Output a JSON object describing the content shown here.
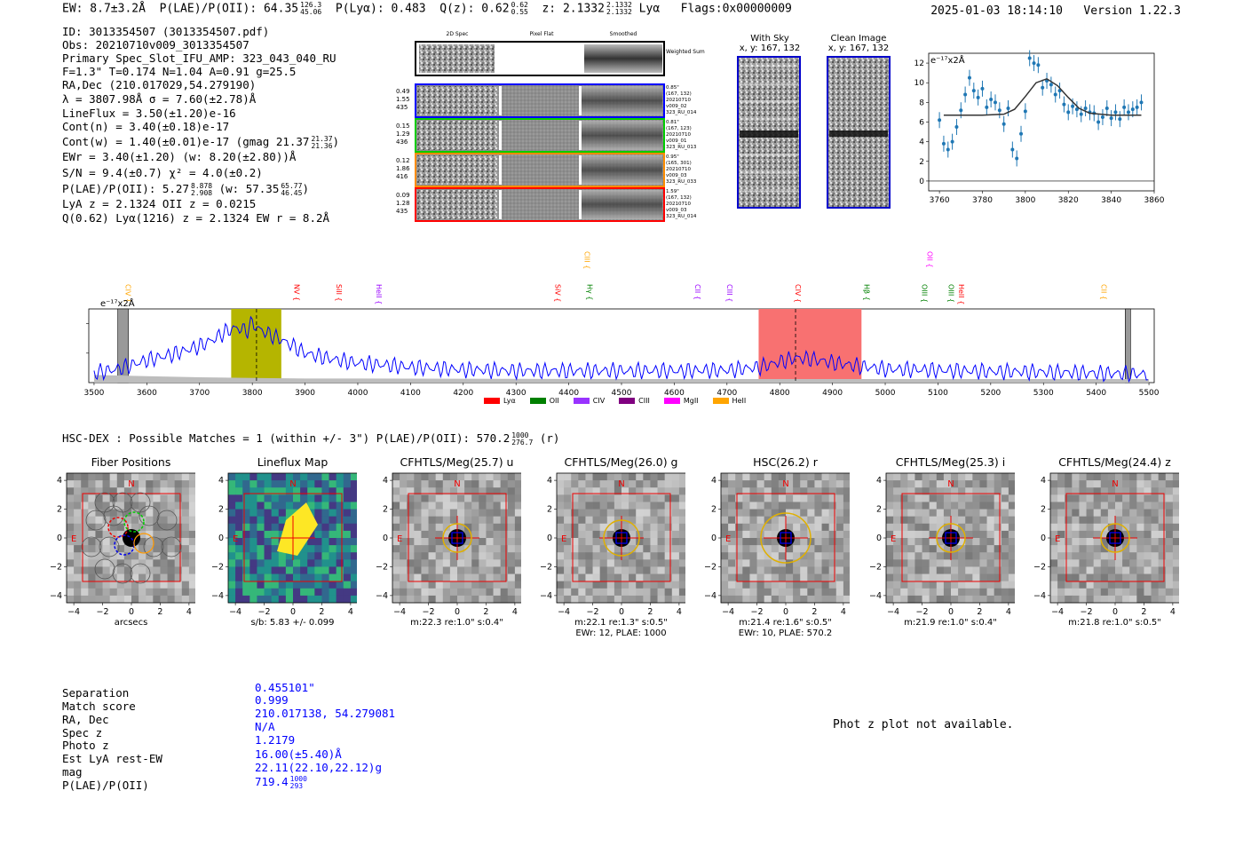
{
  "header": {
    "ew": "EW: 8.7±3.2Å",
    "plae_label": "P(LAE)/P(OII): 64.35",
    "plae_hi": "126.3",
    "plae_lo": "45.06",
    "plya": "P(Lyα): 0.483",
    "qz": "Q(z): 0.62",
    "qz_hi": "0.62",
    "qz_lo": "0.55",
    "z": "z: 2.1332",
    "z_hi": "2.1332",
    "z_lo": "2.1332",
    "z_line": "Lyα",
    "flags": "Flags:0x00000009",
    "datetime": "2025-01-03 18:14:10",
    "version": "Version 1.22.3"
  },
  "info": {
    "id": "ID: 3013354507 (3013354507.pdf)",
    "obs": "Obs: 20210710v009_3013354507",
    "slot": "Primary Spec_Slot_IFU_AMP: 323_043_040_RU",
    "fparams": "F=1.3\"  T=0.174  N=1.04  A=0.91  g=25.5",
    "radec": "RA,Dec (210.017029,54.279190)",
    "lambda": "λ = 3807.98Å  σ = 7.60(±2.78)Å",
    "lineflux": "LineFlux = 3.50(±1.20)e-16",
    "contn": "Cont(n) = 3.40(±0.18)e-17",
    "contw": "Cont(w) = 1.40(±0.01)e-17 (gmag 21.37",
    "contw_hi": "21.37",
    "contw_lo": "21.36",
    "ewr": "EWr = 3.40(±1.20) (w: 8.20(±2.80))Å",
    "sn": "S/N = 9.4(±0.7)  χ² = 4.0(±0.2)",
    "plae": "P(LAE)/P(OII): 5.27",
    "plae_hi": "8.878",
    "plae_lo": "2.908",
    "plae_w": "(w: 57.35",
    "plae_w_hi": "65.77",
    "plae_w_lo": "46.45",
    "lya": "LyA z = 2.1324  OII z = 0.0215",
    "q": "Q(0.62) Lyα(1216) z = 2.1324  EW r = 8.2Å"
  },
  "spec2d": {
    "col_labels": [
      "2D Spec",
      "Pixel Flat",
      "Smoothed"
    ],
    "weighted_label": "Weighted Sum",
    "rows": [
      {
        "left": [
          "0.49",
          "1.55",
          "435"
        ],
        "right": [
          "0.85\"",
          "(167, 132)",
          "20210710",
          "v009_02",
          "323_RU_014"
        ],
        "color": "#0000ff"
      },
      {
        "left": [
          "0.15",
          "1.29",
          "436"
        ],
        "right": [
          "0.81\"",
          "(167, 123)",
          "20210710",
          "v009_01",
          "323_RU_013"
        ],
        "color": "#00cc00"
      },
      {
        "left": [
          "0.12",
          "1.86",
          "416"
        ],
        "right": [
          "0.95\"",
          "(165, 301)",
          "20210710",
          "v009_03",
          "323_RU_033"
        ],
        "color": "#ff8c00"
      },
      {
        "left": [
          "0.09",
          "1.28",
          "435"
        ],
        "right": [
          "1.59\"",
          "(167, 132)",
          "20210710",
          "v009_03",
          "323_RU_014"
        ],
        "color": "#ff0000"
      }
    ]
  },
  "cutouts": {
    "sky_title": "With Sky",
    "sky_coord": "x, y: 167, 132",
    "clean_title": "Clean Image",
    "clean_coord": "x, y: 167, 132"
  },
  "zoom_chart": {
    "ylabel": "e⁻¹⁷x2Å"
  },
  "full_spectrum": {
    "ylabel": "e⁻¹⁷x2Å",
    "line_labels": [
      {
        "name": "CIV",
        "wave": 3560,
        "color": "#ffa500",
        "row": 1
      },
      {
        "name": "NV",
        "wave": 3880,
        "color": "#ff0000",
        "row": 1
      },
      {
        "name": "SiII",
        "wave": 3960,
        "color": "#ff0000",
        "row": 1
      },
      {
        "name": "HeII",
        "wave": 4035,
        "color": "#9900ff",
        "row": 1
      },
      {
        "name": "CIII",
        "wave": 4430,
        "color": "#ffa500",
        "row": 0
      },
      {
        "name": "SiV",
        "wave": 4375,
        "color": "#ff0000",
        "row": 1
      },
      {
        "name": "Hγ",
        "wave": 4435,
        "color": "#008000",
        "row": 1
      },
      {
        "name": "CII",
        "wave": 4640,
        "color": "#9900ff",
        "row": 1
      },
      {
        "name": "CIII",
        "wave": 4700,
        "color": "#9900ff",
        "row": 1
      },
      {
        "name": "CIV",
        "wave": 4830,
        "color": "#ff0000",
        "row": 1
      },
      {
        "name": "Hβ",
        "wave": 4960,
        "color": "#008000",
        "row": 1
      },
      {
        "name": "OII",
        "wave": 5080,
        "color": "#ff00ff",
        "row": 0
      },
      {
        "name": "OIII",
        "wave": 5070,
        "color": "#008000",
        "row": 1
      },
      {
        "name": "OIII",
        "wave": 5120,
        "color": "#008000",
        "row": 1
      },
      {
        "name": "HeII",
        "wave": 5140,
        "color": "#ff0000",
        "row": 1
      },
      {
        "name": "CII",
        "wave": 5410,
        "color": "#ffa500",
        "row": 1
      }
    ],
    "legend": [
      {
        "name": "Lyα",
        "color": "#ff0000"
      },
      {
        "name": "OII",
        "color": "#008000"
      },
      {
        "name": "CIV",
        "color": "#9933ff"
      },
      {
        "name": "CIII",
        "color": "#800080"
      },
      {
        "name": "MgII",
        "color": "#ff00ff"
      },
      {
        "name": "HeII",
        "color": "#ffa500"
      }
    ]
  },
  "hsc": {
    "header": "HSC-DEX : Possible Matches = 1 (within +/- 3\")  P(LAE)/P(OII): 570.2",
    "hi": "1000",
    "lo": "276.7",
    "band": "(r)",
    "panels": [
      {
        "title": "Fiber Positions",
        "sub1": "arcsecs",
        "sub2": ""
      },
      {
        "title": "Lineflux Map",
        "sub1": "s/b: 5.83 +/- 0.099",
        "sub2": ""
      },
      {
        "title": "CFHTLS/Meg(25.7) u",
        "sub1": "m:22.3  re:1.0\"  s:0.4\"",
        "sub2": ""
      },
      {
        "title": "CFHTLS/Meg(26.0) g",
        "sub1": "m:22.1  re:1.3\"  s:0.5\"",
        "sub2": "EWr: 12, PLAE: 1000"
      },
      {
        "title": "HSC(26.2) r",
        "sub1": "m:21.4  re:1.6\"  s:0.5\"",
        "sub2": "EWr: 10, PLAE: 570.2"
      },
      {
        "title": "CFHTLS/Meg(25.3) i",
        "sub1": "m:21.9  re:1.0\"  s:0.4\"",
        "sub2": ""
      },
      {
        "title": "CFHTLS/Meg(24.4) z",
        "sub1": "m:21.8  re:1.0\"  s:0.5\"",
        "sub2": ""
      }
    ],
    "compass_n": "N",
    "compass_e": "E"
  },
  "match": {
    "labels": [
      "Separation",
      "Match score",
      "RA, Dec",
      "Spec z",
      "Photo z",
      "Est LyA rest-EW",
      "mag",
      "P(LAE)/P(OII)"
    ],
    "values": [
      "0.455101\"",
      "0.999",
      "210.017138, 54.279081",
      "N/A",
      "1.2179",
      "16.00(±5.40)Å",
      "22.11(22.10,22.12)g",
      "719.4"
    ],
    "plae_hi": "1000",
    "plae_lo": "293",
    "photz_note": "Phot z plot not available."
  },
  "chart_data": [
    {
      "type": "scatter",
      "title": "",
      "xlabel": "",
      "ylabel": "e-17x2Å",
      "xlim": [
        3755,
        3860
      ],
      "ylim": [
        -1,
        13
      ],
      "xticks": [
        3760,
        3780,
        3800,
        3820,
        3840,
        3860
      ],
      "yticks": [
        0,
        2,
        4,
        6,
        8,
        10,
        12
      ],
      "x": [
        3760,
        3762,
        3764,
        3766,
        3768,
        3770,
        3772,
        3774,
        3776,
        3778,
        3780,
        3782,
        3784,
        3786,
        3788,
        3790,
        3792,
        3794,
        3796,
        3798,
        3800,
        3802,
        3804,
        3806,
        3808,
        3810,
        3812,
        3814,
        3816,
        3818,
        3820,
        3822,
        3824,
        3826,
        3828,
        3830,
        3832,
        3834,
        3836,
        3838,
        3840,
        3842,
        3844,
        3846,
        3848,
        3850,
        3852,
        3854
      ],
      "y": [
        6.2,
        3.8,
        3.2,
        4.0,
        5.5,
        7.2,
        8.8,
        10.5,
        9.2,
        8.5,
        9.4,
        7.5,
        8.3,
        8.0,
        7.2,
        5.8,
        7.4,
        3.2,
        2.3,
        4.8,
        7.1,
        12.5,
        12.0,
        11.8,
        9.5,
        10.2,
        9.8,
        8.8,
        9.2,
        7.8,
        7.0,
        7.6,
        7.3,
        6.8,
        7.4,
        7.0,
        6.9,
        6.0,
        6.5,
        7.4,
        6.4,
        7.0,
        6.3,
        7.5,
        7.0,
        7.3,
        7.5,
        8.0
      ],
      "series": [
        {
          "name": "gaussian_fit",
          "x": [
            3762,
            3770,
            3780,
            3790,
            3795,
            3800,
            3805,
            3810,
            3815,
            3820,
            3825,
            3830,
            3840,
            3850,
            3854
          ],
          "y": [
            6.7,
            6.7,
            6.7,
            6.8,
            7.3,
            8.6,
            10.0,
            10.4,
            9.7,
            8.5,
            7.4,
            6.9,
            6.7,
            6.7,
            6.7
          ]
        }
      ]
    },
    {
      "type": "line",
      "title": "",
      "xlabel": "",
      "ylabel": "e-17x2Å",
      "xlim": [
        3490,
        5510
      ],
      "ylim": [
        0,
        12.5
      ],
      "xticks": [
        3500,
        3600,
        3700,
        3800,
        3900,
        4000,
        4100,
        4200,
        4300,
        4400,
        4500,
        4600,
        4700,
        4800,
        4900,
        5000,
        5100,
        5200,
        5300,
        5400,
        5500
      ],
      "yticks": [
        5,
        10
      ],
      "highlight_regions": [
        {
          "x0": 3760,
          "x1": 3855,
          "color": "#b5b500"
        },
        {
          "x0": 4760,
          "x1": 4955,
          "color": "#f87171"
        }
      ],
      "masked_regions": [
        {
          "x0": 3545,
          "x1": 3565
        },
        {
          "x0": 5455,
          "x1": 5465
        }
      ],
      "dashed_lines": [
        3808,
        4830
      ],
      "series": [
        {
          "name": "flux",
          "x": [
            3500,
            3550,
            3600,
            3650,
            3700,
            3730,
            3750,
            3770,
            3790,
            3800,
            3810,
            3830,
            3850,
            3880,
            3900,
            3950,
            4000,
            4050,
            4100,
            4200,
            4300,
            4400,
            4500,
            4600,
            4700,
            4760,
            4800,
            4830,
            4860,
            4900,
            4950,
            5000,
            5100,
            5200,
            5300,
            5400,
            5500
          ],
          "y": [
            1.6,
            2.4,
            3.8,
            4.8,
            6.2,
            7.5,
            8.7,
            9.3,
            8.8,
            10.2,
            9.2,
            8.3,
            7.5,
            6.1,
            5.0,
            4.0,
            3.3,
            3.0,
            2.6,
            2.2,
            2.0,
            2.0,
            2.0,
            2.0,
            2.1,
            2.6,
            3.5,
            4.2,
            4.0,
            3.4,
            2.8,
            2.3,
            2.1,
            1.9,
            1.8,
            1.6,
            1.4
          ]
        },
        {
          "name": "noise",
          "x": [
            3500,
            3600,
            3700,
            3800,
            3900,
            4000,
            4500,
            5000,
            5500
          ],
          "y": [
            1.3,
            1.1,
            0.9,
            0.8,
            0.7,
            0.7,
            0.6,
            0.6,
            0.6
          ]
        }
      ]
    }
  ]
}
